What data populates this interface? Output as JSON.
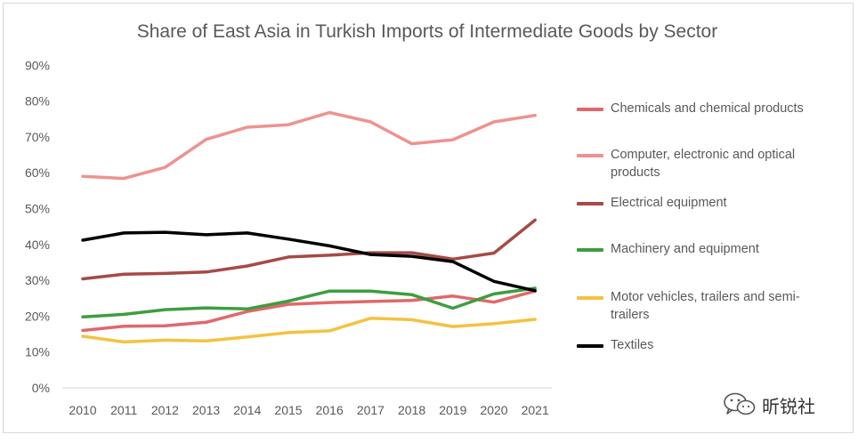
{
  "chart_data": {
    "type": "line",
    "title": "Share of East Asia in Turkish Imports of Intermediate Goods by Sector",
    "x": [
      "2010",
      "2011",
      "2012",
      "2013",
      "2014",
      "2015",
      "2016",
      "2017",
      "2018",
      "2019",
      "2020",
      "2021"
    ],
    "ylim": [
      0,
      90
    ],
    "y_ticks": [
      "0%",
      "10%",
      "20%",
      "30%",
      "40%",
      "50%",
      "60%",
      "70%",
      "80%",
      "90%"
    ],
    "grid": false,
    "legend_position": "right",
    "series": [
      {
        "name": "Chemicals and chemical products",
        "color": "#e0686a",
        "values": [
          16,
          17.2,
          17.3,
          18.3,
          21.3,
          23.3,
          23.8,
          24.1,
          24.4,
          25.6,
          23.9,
          27
        ]
      },
      {
        "name": "Computer, electronic and optical products",
        "color": "#ee9290",
        "values": [
          59,
          58.4,
          61.5,
          69.3,
          72.7,
          73.4,
          76.8,
          74.2,
          68.1,
          69.2,
          74.2,
          76
        ]
      },
      {
        "name": "Electrical equipment",
        "color": "#a64a46",
        "values": [
          30.4,
          31.7,
          31.9,
          32.3,
          34,
          36.5,
          37,
          37.7,
          37.7,
          35.9,
          37.6,
          46.8
        ]
      },
      {
        "name": "Machinery and equipment",
        "color": "#3c9e3f",
        "values": [
          19.8,
          20.5,
          21.8,
          22.3,
          22,
          24.2,
          27,
          27,
          26,
          22.2,
          26.2,
          27.8
        ]
      },
      {
        "name": "Motor vehicles, trailers and semi-trailers",
        "color": "#f4c241",
        "values": [
          14.4,
          12.8,
          13.3,
          13.1,
          14.2,
          15.4,
          15.9,
          19.4,
          19,
          17.1,
          17.9,
          19.1
        ]
      },
      {
        "name": "Textiles",
        "color": "#000000",
        "values": [
          41.2,
          43.2,
          43.4,
          42.7,
          43.2,
          41.5,
          39.6,
          37.2,
          36.7,
          35.2,
          29.7,
          27.1
        ]
      }
    ]
  },
  "legend": [
    {
      "line1": "Chemicals and chemical products",
      "line2": "",
      "color": "#e0686a"
    },
    {
      "line1": "Computer, electronic and optical",
      "line2": "products",
      "color": "#ee9290"
    },
    {
      "line1": "Electrical equipment",
      "line2": "",
      "color": "#a64a46"
    },
    {
      "line1": "Machinery and equipment",
      "line2": "",
      "color": "#3c9e3f"
    },
    {
      "line1": "Motor vehicles, trailers and semi-",
      "line2": "trailers",
      "color": "#f4c241"
    },
    {
      "line1": "Textiles",
      "line2": "",
      "color": "#000000"
    }
  ],
  "watermark": {
    "text": "昕锐社",
    "icon": "wechat-icon"
  }
}
